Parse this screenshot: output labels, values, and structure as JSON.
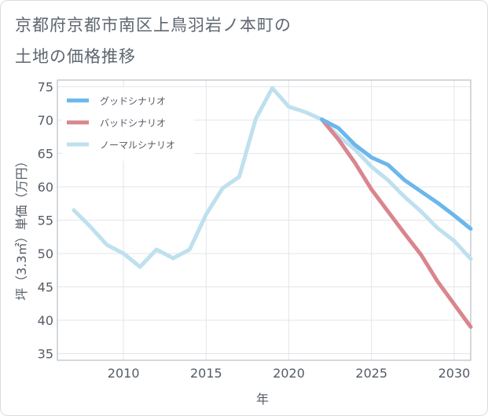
{
  "title": {
    "line1": "京都府京都市南区上鳥羽岩ノ本町の",
    "line2": "土地の価格推移"
  },
  "chart_data": {
    "type": "line",
    "xlabel": "年",
    "ylabel": "坪（3.3㎡）単価（万円）",
    "xlim": [
      2006,
      2031
    ],
    "ylim": [
      34,
      76
    ],
    "x_ticks": [
      2010,
      2015,
      2020,
      2025,
      2030
    ],
    "y_ticks": [
      35,
      40,
      45,
      50,
      55,
      60,
      65,
      70,
      75
    ],
    "legend_position": "top-left",
    "series": [
      {
        "name": "グッドシナリオ",
        "color": "#6bb7ec",
        "x": [
          2022,
          2023,
          2024,
          2025,
          2026,
          2027,
          2028,
          2029,
          2030,
          2031
        ],
        "y": [
          70.1,
          68.8,
          66.3,
          64.4,
          63.3,
          61.0,
          59.3,
          57.6,
          55.7,
          53.7
        ]
      },
      {
        "name": "バッドシナリオ",
        "color": "#da858e",
        "x": [
          2022,
          2023,
          2024,
          2025,
          2026,
          2027,
          2028,
          2029,
          2030,
          2031
        ],
        "y": [
          70.1,
          67.1,
          63.6,
          59.6,
          56.3,
          53.0,
          49.8,
          45.8,
          42.4,
          39.0
        ]
      },
      {
        "name": "ノーマルシナリオ",
        "color": "#bfe0ee",
        "x": [
          2007,
          2008,
          2009,
          2010,
          2011,
          2012,
          2013,
          2014,
          2015,
          2016,
          2017,
          2018,
          2019,
          2020,
          2021,
          2022,
          2023,
          2024,
          2025,
          2026,
          2027,
          2028,
          2029,
          2030,
          2031
        ],
        "y": [
          56.5,
          54.0,
          51.3,
          50.0,
          48.0,
          50.6,
          49.3,
          50.6,
          55.9,
          59.8,
          61.5,
          70.2,
          74.8,
          72.0,
          71.2,
          70.1,
          67.6,
          65.6,
          63.0,
          61.0,
          58.5,
          56.3,
          53.8,
          51.9,
          49.2
        ]
      }
    ]
  }
}
